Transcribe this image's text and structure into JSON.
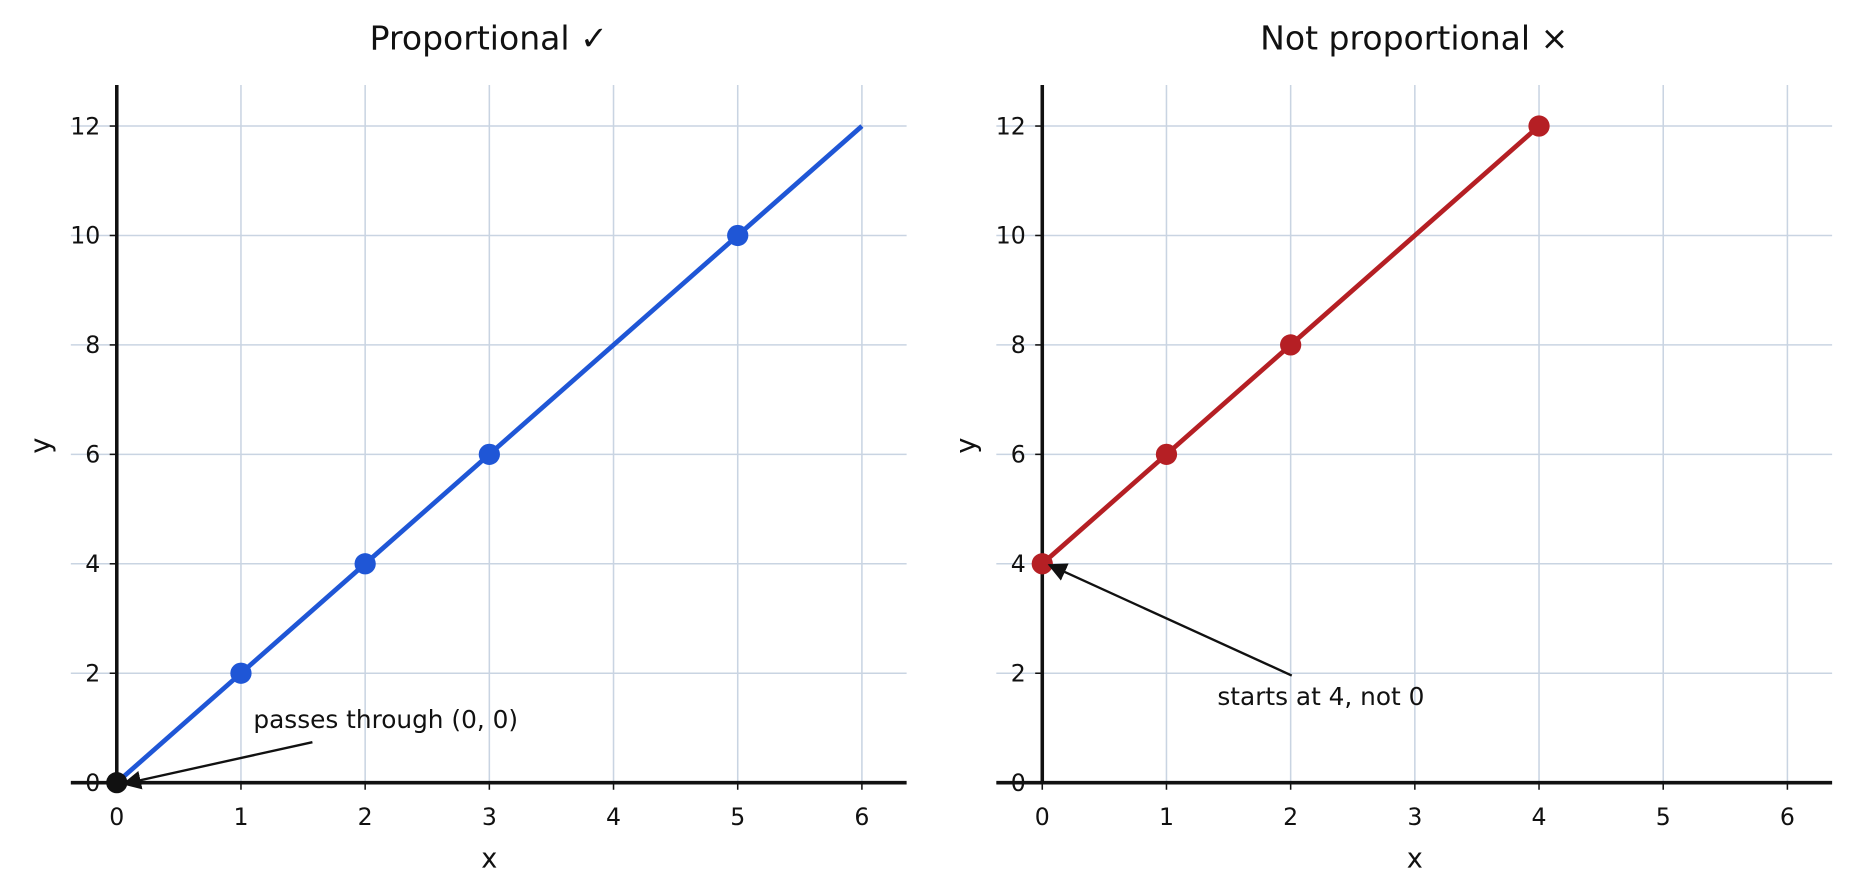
{
  "chart_data": [
    {
      "type": "line",
      "title": "Proportional  ✓",
      "x_label": "x",
      "y_label": "y",
      "xlim": [
        -0.37,
        6.36
      ],
      "ylim": [
        0,
        12.75
      ],
      "xticks": [
        0,
        1,
        2,
        3,
        4,
        5,
        6
      ],
      "yticks": [
        0,
        2,
        4,
        6,
        8,
        10,
        12
      ],
      "grid": true,
      "series": [
        {
          "color": "#1f56d6",
          "x": [
            0,
            6
          ],
          "values": [
            0,
            12
          ],
          "line": true,
          "markers": false
        },
        {
          "color": "#1f56d6",
          "x": [
            1,
            2,
            3,
            5
          ],
          "values": [
            2,
            4,
            6,
            10
          ],
          "line": false,
          "markers": true
        },
        {
          "color": "#111111",
          "x": [
            0
          ],
          "values": [
            0
          ],
          "line": false,
          "markers": true
        }
      ],
      "annotations": [
        {
          "text": "passes through (0, 0)",
          "xy": [
            0,
            0
          ],
          "xytext": [
            1.1,
            1.15
          ]
        }
      ]
    },
    {
      "type": "line",
      "title": "Not proportional  ×",
      "x_label": "x",
      "y_label": "y",
      "xlim": [
        -0.37,
        6.36
      ],
      "ylim": [
        0,
        12.75
      ],
      "xticks": [
        0,
        1,
        2,
        3,
        4,
        5,
        6
      ],
      "yticks": [
        0,
        2,
        4,
        6,
        8,
        10,
        12
      ],
      "grid": true,
      "series": [
        {
          "color": "#b51f24",
          "x": [
            0,
            1,
            2,
            4
          ],
          "values": [
            4,
            6,
            8,
            12
          ],
          "line": true,
          "markers": true
        }
      ],
      "annotations": [
        {
          "text": "starts at 4, not 0",
          "xy": [
            0,
            4
          ],
          "xytext": [
            1.41,
            1.57
          ]
        }
      ]
    }
  ]
}
